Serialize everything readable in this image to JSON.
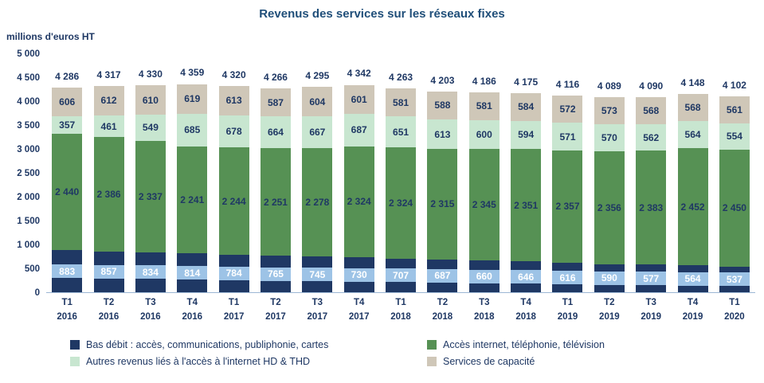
{
  "title": "Revenus des services sur les réseaux fixes",
  "unit_label": "millions d'euros HT",
  "chart_data": {
    "type": "bar",
    "stacked": true,
    "title": "Revenus des services sur les réseaux fixes",
    "ylabel": "millions d'euros HT",
    "ylim": [
      0,
      5000
    ],
    "ytick_step": 500,
    "ytick_labels": [
      "0",
      "500",
      "1 000",
      "1 500",
      "2 000",
      "2 500",
      "3 000",
      "3 500",
      "4 000",
      "4 500",
      "5 000"
    ],
    "grid": false,
    "legend_position": "bottom",
    "categories": [
      {
        "quarter": "T1",
        "year": "2016"
      },
      {
        "quarter": "T2",
        "year": "2016"
      },
      {
        "quarter": "T3",
        "year": "2016"
      },
      {
        "quarter": "T4",
        "year": "2016"
      },
      {
        "quarter": "T1",
        "year": "2017"
      },
      {
        "quarter": "T2",
        "year": "2017"
      },
      {
        "quarter": "T3",
        "year": "2017"
      },
      {
        "quarter": "T4",
        "year": "2017"
      },
      {
        "quarter": "T1",
        "year": "2018"
      },
      {
        "quarter": "T2",
        "year": "2018"
      },
      {
        "quarter": "T3",
        "year": "2018"
      },
      {
        "quarter": "T4",
        "year": "2018"
      },
      {
        "quarter": "T1",
        "year": "2019"
      },
      {
        "quarter": "T2",
        "year": "2019"
      },
      {
        "quarter": "T3",
        "year": "2019"
      },
      {
        "quarter": "T4",
        "year": "2019"
      },
      {
        "quarter": "T1",
        "year": "2020"
      }
    ],
    "series": [
      {
        "id": "bas-debit",
        "name": "Bas débit : accès, communications, publiphonie, cartes",
        "color": "#1F3864",
        "label_bg": "#9DC3E6",
        "label_color": "#FFFFFF",
        "values": [
          883,
          857,
          834,
          814,
          784,
          765,
          745,
          730,
          707,
          687,
          660,
          646,
          616,
          590,
          577,
          564,
          537
        ]
      },
      {
        "id": "acces-internet",
        "name": "Accès internet, téléphonie, télévision",
        "color": "#569154",
        "label_bg": null,
        "label_color": "#1F3864",
        "values": [
          2440,
          2386,
          2337,
          2241,
          2244,
          2251,
          2278,
          2324,
          2324,
          2315,
          2345,
          2351,
          2357,
          2356,
          2383,
          2452,
          2450
        ]
      },
      {
        "id": "autres-revenus",
        "name": "Autres revenus liés à l'accès à l'internet HD & THD",
        "color": "#C8E6D0",
        "label_bg": null,
        "label_color": "#1F3864",
        "values": [
          357,
          461,
          549,
          685,
          678,
          664,
          667,
          687,
          651,
          613,
          600,
          594,
          571,
          570,
          562,
          564,
          554
        ]
      },
      {
        "id": "services-capacite",
        "name": "Services de capacité",
        "color": "#CFC7B8",
        "label_bg": null,
        "label_color": "#1F3864",
        "values": [
          606,
          612,
          610,
          619,
          613,
          587,
          604,
          601,
          581,
          588,
          581,
          584,
          572,
          573,
          568,
          568,
          561
        ]
      }
    ],
    "totals": [
      4286,
      4317,
      4330,
      4359,
      4320,
      4266,
      4295,
      4342,
      4263,
      4203,
      4186,
      4175,
      4116,
      4089,
      4090,
      4148,
      4102
    ]
  }
}
